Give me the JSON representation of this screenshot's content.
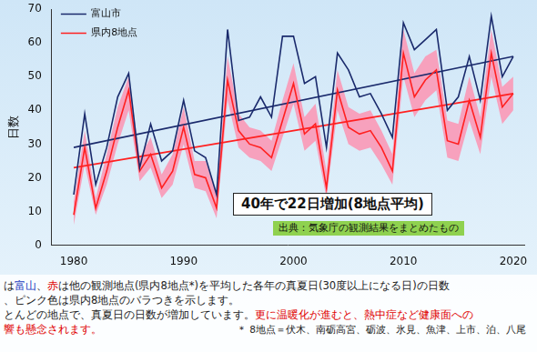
{
  "chart_data": {
    "type": "line",
    "y_label": "日数",
    "x": [
      1980,
      1981,
      1982,
      1983,
      1984,
      1985,
      1986,
      1987,
      1988,
      1989,
      1990,
      1991,
      1992,
      1993,
      1994,
      1995,
      1996,
      1997,
      1998,
      1999,
      2000,
      2001,
      2002,
      2003,
      2004,
      2005,
      2006,
      2007,
      2008,
      2009,
      2010,
      2011,
      2012,
      2013,
      2014,
      2015,
      2016,
      2017,
      2018,
      2019,
      2020
    ],
    "series": [
      {
        "name": "富山市",
        "color": "#1a2a6c",
        "values": [
          15,
          39,
          18,
          29,
          44,
          51,
          23,
          36,
          25,
          28,
          43,
          28,
          26,
          15,
          64,
          37,
          38,
          44,
          38,
          62,
          62,
          48,
          50,
          29,
          57,
          52,
          44,
          45,
          39,
          32,
          66,
          58,
          61,
          64,
          40,
          44,
          56,
          43,
          68,
          50,
          56
        ],
        "trend": {
          "x": [
            1980,
            2020
          ],
          "values": [
            29,
            56
          ]
        }
      },
      {
        "name": "県内8地点",
        "color": "#ff2020",
        "values": [
          9,
          29,
          11,
          22,
          35,
          46,
          22,
          27,
          17,
          22,
          35,
          21,
          20,
          11,
          49,
          34,
          30,
          29,
          26,
          37,
          48,
          33,
          36,
          17,
          46,
          35,
          33,
          34,
          29,
          22,
          57,
          44,
          49,
          52,
          31,
          30,
          43,
          32,
          57,
          41,
          45
        ],
        "trend": {
          "x": [
            1980,
            2020
          ],
          "values": [
            23,
            45
          ]
        }
      }
    ],
    "band": {
      "color": "#f7a1bd",
      "low": [
        6,
        24,
        9,
        18,
        30,
        40,
        19,
        23,
        14,
        18,
        30,
        17,
        16,
        8,
        43,
        29,
        26,
        25,
        22,
        32,
        42,
        28,
        31,
        14,
        40,
        30,
        28,
        29,
        24,
        18,
        50,
        38,
        43,
        46,
        26,
        25,
        37,
        27,
        50,
        36,
        40
      ],
      "high": [
        13,
        34,
        14,
        27,
        41,
        50,
        26,
        32,
        21,
        27,
        41,
        25,
        25,
        15,
        56,
        39,
        35,
        34,
        31,
        43,
        54,
        38,
        42,
        22,
        52,
        41,
        39,
        40,
        34,
        27,
        64,
        51,
        56,
        58,
        37,
        36,
        50,
        38,
        64,
        47,
        50
      ]
    },
    "xlim": [
      1978,
      2021
    ],
    "xticks": [
      1980,
      1990,
      2000,
      2010,
      2020
    ],
    "ylim": [
      0,
      70
    ],
    "yticks": [
      0,
      10,
      20,
      30,
      40,
      50,
      60,
      70
    ],
    "grid": false,
    "legend": "upper left",
    "annotation": "40年で22日増加(8地点平均)",
    "source": "出典：気象庁の観測結果をまとめたもの",
    "caption": [
      [
        {
          "text": "は",
          "color": "#222222"
        },
        {
          "text": "富山",
          "color": "#1f3fbf"
        },
        {
          "text": "、",
          "color": "#222222"
        },
        {
          "text": "赤",
          "color": "#e00000"
        },
        {
          "text": "は他の観測地点(県内8地点*)を平均した各年の真夏日(30度以上になる日)の日数",
          "color": "#222222"
        }
      ],
      [
        {
          "text": "、ピンク色は県内8地点のバラつきを示します。",
          "color": "#222222"
        }
      ],
      [
        {
          "text": "とんどの地点で、真夏日の日数が増加しています。",
          "color": "#222222"
        },
        {
          "text": "更に温暖化が進むと、熱中症など健康面への",
          "color": "#e00000"
        }
      ],
      [
        {
          "text": "響も懸念されます。",
          "color": "#e00000"
        }
      ]
    ],
    "footnote": "＊ 8地点＝伏木、南砺高宮、砺波、氷見、魚津、上市、泊、八尾"
  }
}
